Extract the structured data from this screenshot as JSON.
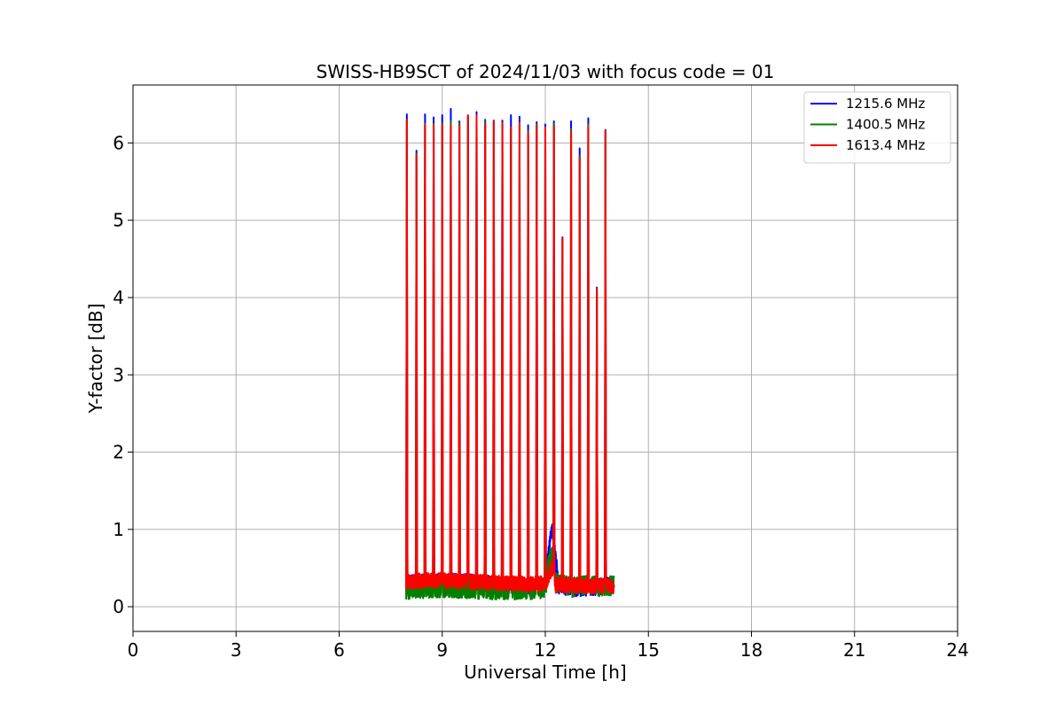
{
  "chart_data": {
    "type": "line",
    "title": "SWISS-HB9SCT of 2024/11/03 with focus code = 01",
    "xlabel": "Universal Time [h]",
    "ylabel": "Y-factor [dB]",
    "xlim": [
      0,
      24
    ],
    "ylim": [
      -0.32,
      6.75
    ],
    "xticks": [
      0,
      3,
      6,
      9,
      12,
      15,
      18,
      21,
      24
    ],
    "yticks": [
      0,
      1,
      2,
      3,
      4,
      5,
      6
    ],
    "grid": true,
    "legend_position": "top-right",
    "x_range_data": [
      7.95,
      14.0
    ],
    "series": [
      {
        "name": "1215.6 MHz",
        "color": "#0000ff",
        "baseline": [
          [
            7.95,
            0.3
          ],
          [
            8.5,
            0.32
          ],
          [
            9.0,
            0.33
          ],
          [
            9.5,
            0.32
          ],
          [
            10.0,
            0.31
          ],
          [
            10.5,
            0.3
          ],
          [
            11.0,
            0.28
          ],
          [
            11.5,
            0.27
          ],
          [
            12.0,
            0.28
          ],
          [
            12.1,
            0.75
          ],
          [
            12.2,
            1.05
          ],
          [
            12.25,
            0.8
          ],
          [
            12.4,
            0.25
          ],
          [
            12.8,
            0.24
          ],
          [
            13.2,
            0.25
          ],
          [
            13.6,
            0.26
          ],
          [
            14.0,
            0.28
          ]
        ],
        "noise": 0.11,
        "peaks": [
          [
            7.97,
            6.37
          ],
          [
            8.25,
            5.9
          ],
          [
            8.5,
            6.37
          ],
          [
            8.75,
            6.33
          ],
          [
            9.0,
            6.36
          ],
          [
            9.25,
            6.44
          ],
          [
            9.5,
            6.28
          ],
          [
            9.75,
            6.34
          ],
          [
            10.0,
            6.4
          ],
          [
            10.25,
            6.3
          ],
          [
            10.5,
            6.29
          ],
          [
            10.75,
            6.29
          ],
          [
            11.0,
            6.36
          ],
          [
            11.25,
            6.34
          ],
          [
            11.5,
            6.23
          ],
          [
            11.75,
            6.27
          ],
          [
            12.0,
            6.24
          ],
          [
            12.25,
            6.28
          ],
          [
            12.5,
            4.78
          ],
          [
            12.75,
            6.28
          ],
          [
            13.0,
            5.93
          ],
          [
            13.25,
            6.32
          ],
          [
            13.5,
            4.13
          ],
          [
            13.75,
            6.17
          ]
        ]
      },
      {
        "name": "1400.5 MHz",
        "color": "#008000",
        "baseline": [
          [
            7.95,
            0.22
          ],
          [
            8.5,
            0.24
          ],
          [
            9.0,
            0.25
          ],
          [
            9.5,
            0.24
          ],
          [
            10.0,
            0.23
          ],
          [
            10.5,
            0.22
          ],
          [
            11.0,
            0.22
          ],
          [
            11.5,
            0.22
          ],
          [
            12.0,
            0.24
          ],
          [
            12.1,
            0.55
          ],
          [
            12.2,
            0.7
          ],
          [
            12.3,
            0.3
          ],
          [
            12.8,
            0.25
          ],
          [
            13.2,
            0.27
          ],
          [
            13.6,
            0.26
          ],
          [
            14.0,
            0.28
          ]
        ],
        "noise": 0.13,
        "peaks": [
          [
            7.97,
            6.3
          ],
          [
            8.25,
            5.86
          ],
          [
            8.5,
            6.25
          ],
          [
            8.75,
            6.25
          ],
          [
            9.0,
            6.25
          ],
          [
            9.25,
            6.28
          ],
          [
            9.5,
            6.25
          ],
          [
            9.75,
            6.35
          ],
          [
            10.0,
            6.35
          ],
          [
            10.25,
            6.28
          ],
          [
            10.5,
            6.28
          ],
          [
            10.75,
            6.26
          ],
          [
            11.0,
            6.2
          ],
          [
            11.25,
            6.26
          ],
          [
            11.5,
            6.16
          ],
          [
            11.75,
            6.24
          ],
          [
            12.0,
            6.2
          ],
          [
            12.25,
            6.25
          ],
          [
            12.5,
            4.77
          ],
          [
            12.75,
            6.18
          ],
          [
            13.0,
            5.83
          ],
          [
            13.25,
            6.24
          ],
          [
            13.5,
            4.11
          ],
          [
            13.75,
            6.16
          ]
        ]
      },
      {
        "name": "1613.4 MHz",
        "color": "#ff0000",
        "baseline": [
          [
            7.95,
            0.32
          ],
          [
            8.5,
            0.34
          ],
          [
            9.0,
            0.34
          ],
          [
            9.5,
            0.33
          ],
          [
            10.0,
            0.32
          ],
          [
            10.5,
            0.31
          ],
          [
            11.0,
            0.3
          ],
          [
            11.5,
            0.29
          ],
          [
            12.0,
            0.3
          ],
          [
            12.15,
            0.45
          ],
          [
            12.2,
            0.5
          ],
          [
            12.3,
            0.28
          ],
          [
            12.8,
            0.27
          ],
          [
            13.2,
            0.26
          ],
          [
            13.6,
            0.27
          ],
          [
            14.0,
            0.27
          ]
        ],
        "noise": 0.1,
        "peaks": [
          [
            7.97,
            6.3
          ],
          [
            8.25,
            5.84
          ],
          [
            8.5,
            6.23
          ],
          [
            8.75,
            6.23
          ],
          [
            9.0,
            6.23
          ],
          [
            9.25,
            6.23
          ],
          [
            9.5,
            6.22
          ],
          [
            9.75,
            6.36
          ],
          [
            10.0,
            6.36
          ],
          [
            10.25,
            6.24
          ],
          [
            10.5,
            6.28
          ],
          [
            10.75,
            6.26
          ],
          [
            11.0,
            6.2
          ],
          [
            11.25,
            6.26
          ],
          [
            11.5,
            6.13
          ],
          [
            11.75,
            6.22
          ],
          [
            12.0,
            6.2
          ],
          [
            12.25,
            6.22
          ],
          [
            12.5,
            4.77
          ],
          [
            12.75,
            6.15
          ],
          [
            13.0,
            5.81
          ],
          [
            13.25,
            6.22
          ],
          [
            13.5,
            4.1
          ],
          [
            13.75,
            6.16
          ]
        ]
      }
    ]
  }
}
